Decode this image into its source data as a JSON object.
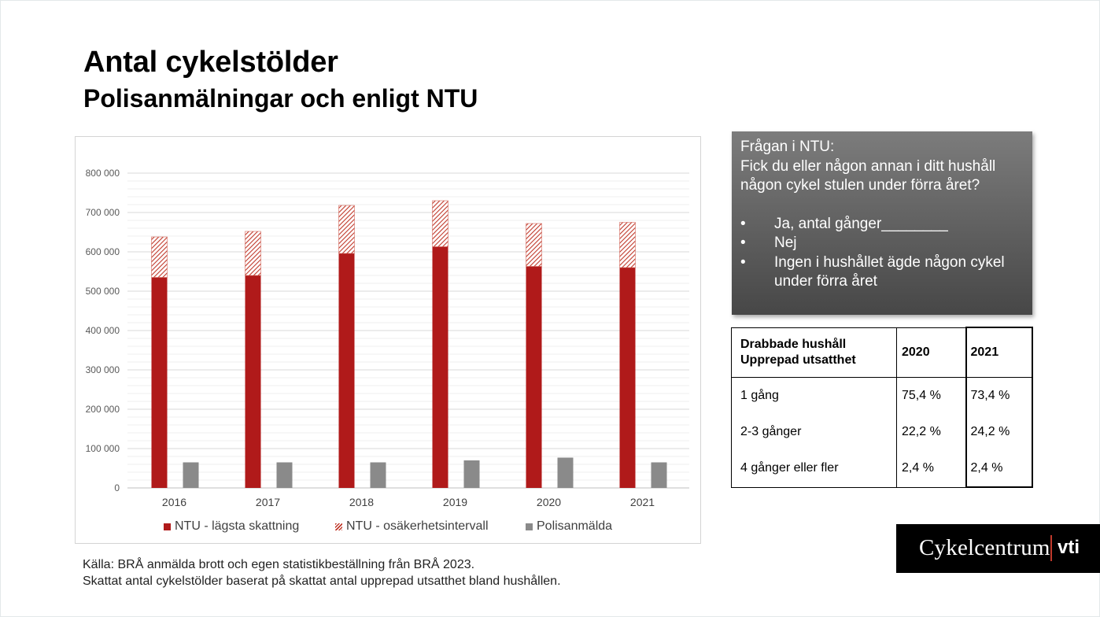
{
  "title": "Antal cykelstölder",
  "subtitle": "Polisanmälningar och enligt NTU",
  "colors": {
    "ntu_low": "#b01a1a",
    "ntu_interval_hatch": "#c0392b",
    "police": "#8a8a8a",
    "grid": "#d9d9d9",
    "question_box": "#5f5f5f"
  },
  "chart_data": {
    "type": "bar",
    "categories": [
      "2016",
      "2017",
      "2018",
      "2019",
      "2020",
      "2021"
    ],
    "series": [
      {
        "name": "NTU - lägsta skattning",
        "values": [
          535000,
          540000,
          596000,
          613000,
          563000,
          560000
        ],
        "stack": "ntu",
        "style": "solid"
      },
      {
        "name": "NTU - osäkerhetsintervall",
        "values": [
          103000,
          112000,
          122000,
          117000,
          109000,
          115000
        ],
        "stack": "ntu",
        "style": "hatched"
      },
      {
        "name": "Polisanmälda",
        "values": [
          65000,
          65000,
          65000,
          70000,
          77000,
          65000
        ],
        "stack": "police",
        "style": "solid"
      }
    ],
    "ylim": [
      0,
      800000
    ],
    "yticks": [
      0,
      100000,
      200000,
      300000,
      400000,
      500000,
      600000,
      700000,
      800000
    ],
    "ytick_labels": [
      "0",
      "100 000",
      "200 000",
      "300 000",
      "400 000",
      "500 000",
      "600 000",
      "700 000",
      "800 000"
    ],
    "xlabel": "",
    "ylabel": "",
    "grid": true,
    "legend_position": "bottom"
  },
  "question": {
    "heading": "Frågan i NTU:",
    "text_line1": "Fick du eller någon annan i ditt hushåll",
    "text_line2": "någon cykel stulen under förra året?",
    "bullet_glyph": "•",
    "options": [
      {
        "line1": "Ja, antal gånger________",
        "line2": ""
      },
      {
        "line1": "Nej",
        "line2": ""
      },
      {
        "line1": "Ingen i hushållet ägde någon cykel",
        "line2": "under förra året"
      }
    ]
  },
  "stats_table": {
    "header_line1": "Drabbade hushåll",
    "header_line2": "Upprepad utsatthet",
    "col_2020": "2020",
    "col_2021": "2021",
    "rows": [
      {
        "label": "1 gång",
        "v2020": "75,4 %",
        "v2021": "73,4 %"
      },
      {
        "label": "2-3 gånger",
        "v2020": "22,2 %",
        "v2021": "24,2 %"
      },
      {
        "label": "4 gånger eller fler",
        "v2020": "2,4 %",
        "v2021": "2,4 %"
      }
    ]
  },
  "source": {
    "line1": "Källa: BRÅ anmälda brott och egen statistikbeställning från BRÅ 2023.",
    "line2": "Skattat antal cykelstölder baserat på skattat antal upprepad utsatthet bland hushållen."
  },
  "logo": {
    "wordmark": "Cykelcentrum",
    "partner": "vti"
  }
}
